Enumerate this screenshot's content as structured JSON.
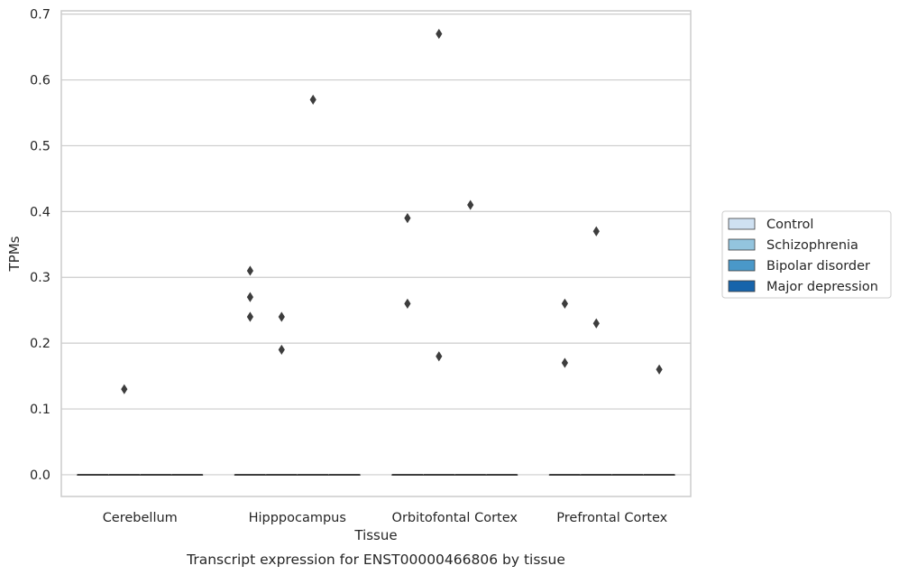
{
  "chart_data": {
    "type": "box",
    "caption": "Transcript expression for ENST00000466806 by tissue",
    "xlabel": "Tissue",
    "ylabel": "TPMs",
    "ylim": [
      -0.033,
      0.705
    ],
    "yticks": [
      0.0,
      0.1,
      0.2,
      0.3,
      0.4,
      0.5,
      0.6,
      0.7
    ],
    "ytick_labels": [
      "0.0",
      "0.1",
      "0.2",
      "0.3",
      "0.4",
      "0.5",
      "0.6",
      "0.7"
    ],
    "categories": [
      "Cerebellum",
      "Hipppocampus",
      "Orbitofontal Cortex",
      "Prefrontal Cortex"
    ],
    "grid": true,
    "legend_placement": "right",
    "series": [
      {
        "name": "Control",
        "color": "#cfe1f2",
        "boxes": [
          {
            "median": 0.0,
            "q1": 0.0,
            "q3": 0.0
          },
          {
            "median": 0.0,
            "q1": 0.0,
            "q3": 0.0
          },
          {
            "median": 0.0,
            "q1": 0.0,
            "q3": 0.0
          },
          {
            "median": 0.0,
            "q1": 0.0,
            "q3": 0.0
          }
        ],
        "outliers": [
          [],
          [
            0.31,
            0.27,
            0.24
          ],
          [
            0.39,
            0.26
          ],
          [
            0.26,
            0.17
          ]
        ]
      },
      {
        "name": "Schizophrenia",
        "color": "#93c4de",
        "boxes": [
          {
            "median": 0.0,
            "q1": 0.0,
            "q3": 0.0
          },
          {
            "median": 0.0,
            "q1": 0.0,
            "q3": 0.0
          },
          {
            "median": 0.0,
            "q1": 0.0,
            "q3": 0.0
          },
          {
            "median": 0.0,
            "q1": 0.0,
            "q3": 0.0
          }
        ],
        "outliers": [
          [
            0.13
          ],
          [
            0.24,
            0.19
          ],
          [
            0.67,
            0.18
          ],
          [
            0.37,
            0.23
          ]
        ]
      },
      {
        "name": "Bipolar disorder",
        "color": "#4a98c9",
        "boxes": [
          {
            "median": 0.0,
            "q1": 0.0,
            "q3": 0.0
          },
          {
            "median": 0.0,
            "q1": 0.0,
            "q3": 0.0
          },
          {
            "median": 0.0,
            "q1": 0.0,
            "q3": 0.0
          },
          {
            "median": 0.0,
            "q1": 0.0,
            "q3": 0.0
          }
        ],
        "outliers": [
          [],
          [
            0.57
          ],
          [
            0.41
          ],
          []
        ]
      },
      {
        "name": "Major depression",
        "color": "#1764ab",
        "boxes": [
          {
            "median": 0.0,
            "q1": 0.0,
            "q3": 0.0
          },
          {
            "median": 0.0,
            "q1": 0.0,
            "q3": 0.0
          },
          {
            "median": 0.0,
            "q1": 0.0,
            "q3": 0.0
          },
          {
            "median": 0.0,
            "q1": 0.0,
            "q3": 0.0
          }
        ],
        "outliers": [
          [],
          [],
          [],
          [
            0.16
          ]
        ]
      }
    ]
  }
}
